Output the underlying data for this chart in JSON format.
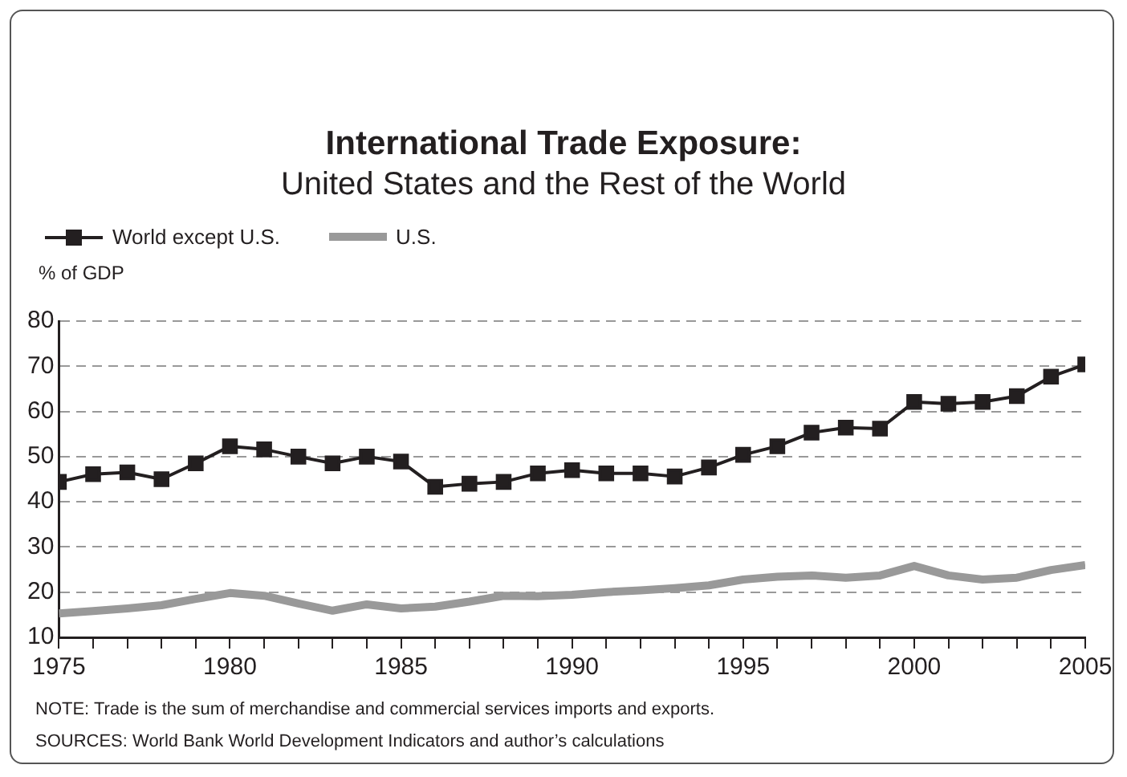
{
  "chart_data": {
    "type": "line",
    "title": "International Trade Exposure:",
    "subtitle": "United States and the Rest of the World",
    "ylabel": "% of GDP",
    "x": [
      1975,
      1976,
      1977,
      1978,
      1979,
      1980,
      1981,
      1982,
      1983,
      1984,
      1985,
      1986,
      1987,
      1988,
      1989,
      1990,
      1991,
      1992,
      1993,
      1994,
      1995,
      1996,
      1997,
      1998,
      1999,
      2000,
      2001,
      2002,
      2003,
      2004,
      2005
    ],
    "series": [
      {
        "name": "World except U.S.",
        "color": "#231f20",
        "marker": "square",
        "values": [
          44.4,
          46.1,
          46.5,
          45.0,
          48.5,
          52.3,
          51.6,
          50.0,
          48.5,
          50.0,
          48.9,
          43.3,
          44.0,
          44.4,
          46.3,
          47.0,
          46.3,
          46.3,
          45.6,
          47.6,
          50.4,
          52.3,
          55.3,
          56.4,
          56.2,
          62.1,
          61.7,
          62.1,
          63.4,
          67.7,
          70.4
        ]
      },
      {
        "name": "U.S.",
        "color": "#999999",
        "marker": "none",
        "values": [
          15.3,
          15.8,
          16.4,
          17.1,
          18.5,
          19.8,
          19.2,
          17.5,
          15.9,
          17.3,
          16.4,
          16.8,
          17.9,
          19.2,
          19.1,
          19.4,
          20.0,
          20.4,
          20.9,
          21.5,
          22.8,
          23.4,
          23.7,
          23.2,
          23.7,
          25.8,
          23.7,
          22.8,
          23.2,
          24.9,
          26.0
        ]
      }
    ],
    "xlim": [
      1975,
      2005
    ],
    "xticks": [
      1975,
      {
        "value": 1976,
        "label": null
      },
      {
        "value": 1977,
        "label": null
      },
      {
        "value": 1978,
        "label": null
      },
      {
        "value": 1979,
        "label": null
      },
      1980,
      {
        "value": 1981,
        "label": null
      },
      {
        "value": 1982,
        "label": null
      },
      {
        "value": 1983,
        "label": null
      },
      {
        "value": 1984,
        "label": null
      },
      1985,
      {
        "value": 1986,
        "label": null
      },
      {
        "value": 1987,
        "label": null
      },
      {
        "value": 1988,
        "label": null
      },
      {
        "value": 1989,
        "label": null
      },
      1990,
      {
        "value": 1991,
        "label": null
      },
      {
        "value": 1992,
        "label": null
      },
      {
        "value": 1993,
        "label": null
      },
      {
        "value": 1994,
        "label": null
      },
      1995,
      {
        "value": 1996,
        "label": null
      },
      {
        "value": 1997,
        "label": null
      },
      {
        "value": 1998,
        "label": null
      },
      {
        "value": 1999,
        "label": null
      },
      2000,
      {
        "value": 2001,
        "label": null
      },
      {
        "value": 2002,
        "label": null
      },
      {
        "value": 2003,
        "label": null
      },
      {
        "value": 2004,
        "label": null
      },
      2005
    ],
    "ylim": [
      10,
      80
    ],
    "yticks": [
      10,
      20,
      30,
      40,
      50,
      60,
      70,
      80
    ],
    "grid": "y",
    "legend": "top left",
    "annotations": [
      "NOTE: Trade is the sum of merchandise and commercial services imports and exports.",
      "SOURCES: World Bank World Development Indicators and author’s calculations"
    ]
  }
}
